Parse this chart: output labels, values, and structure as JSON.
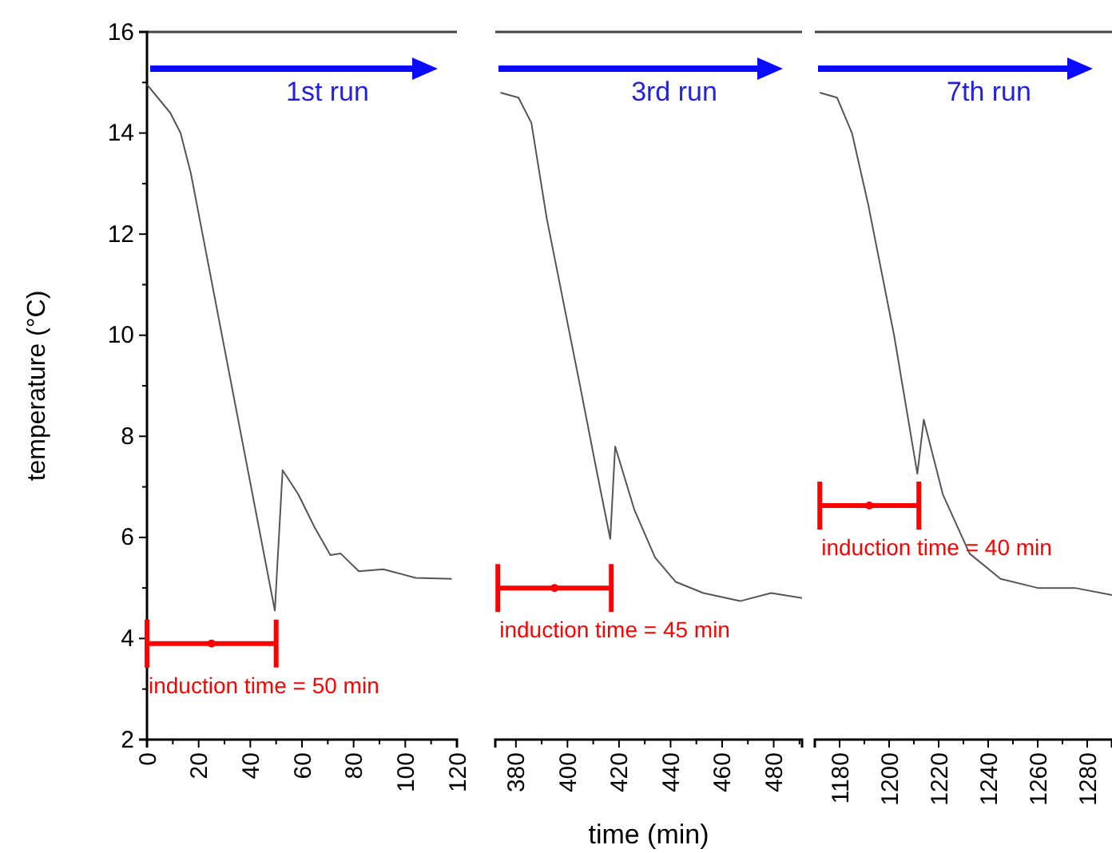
{
  "chart_data": [
    {
      "type": "line",
      "ylabel": "temperature (°C)",
      "xlim": [
        0,
        120
      ],
      "ylim": [
        2,
        16
      ],
      "xticks": [
        0,
        {
          "value": 10,
          "label": null
        },
        20,
        {
          "value": 30,
          "label": null
        },
        40,
        {
          "value": 50,
          "label": null
        },
        60,
        {
          "value": 70,
          "label": null
        },
        80,
        {
          "value": 90,
          "label": null
        },
        100,
        {
          "value": 110,
          "label": null
        },
        120
      ],
      "yticks": [
        2,
        {
          "value": 3,
          "label": null
        },
        4,
        {
          "value": 5,
          "label": null
        },
        6,
        {
          "value": 7,
          "label": null
        },
        8,
        {
          "value": 9,
          "label": null
        },
        10,
        {
          "value": 11,
          "label": null
        },
        12,
        {
          "value": 13,
          "label": null
        },
        14,
        {
          "value": 15,
          "label": null
        },
        16
      ],
      "series": [
        {
          "color": "#555555",
          "x": [
            0,
            9,
            13,
            17,
            49.5,
            52.5,
            58.6,
            64.9,
            71,
            75,
            82,
            91.5,
            104,
            118
          ],
          "values": [
            14.96,
            14.4,
            14.0,
            13.2,
            4.55,
            7.33,
            6.85,
            6.2,
            5.65,
            5.68,
            5.33,
            5.37,
            5.2,
            5.18
          ]
        },
        {
          "type": "scatter",
          "marker": "circle",
          "color": "#ff0000",
          "x": [
            25
          ],
          "values": [
            3.9
          ],
          "xerrors": [
            [
              0,
              50
            ]
          ]
        }
      ],
      "annotations": [
        "1st run",
        "induction time = 50 min"
      ]
    },
    {
      "type": "line",
      "xlabel": "time (min)",
      "xlim": [
        372,
        491
      ],
      "ylim": [
        2,
        16
      ],
      "tick_labels": "x",
      "xticks": [
        380,
        {
          "value": 390,
          "label": null
        },
        400,
        {
          "value": 410,
          "label": null
        },
        420,
        {
          "value": 430,
          "label": null
        },
        440,
        {
          "value": 450,
          "label": null
        },
        460,
        {
          "value": 470,
          "label": null
        },
        480,
        {
          "value": 490,
          "label": null
        }
      ],
      "series": [
        {
          "color": "#555555",
          "x": [
            374,
            381,
            386,
            392,
            405,
            411,
            416.6,
            418.5,
            426,
            434,
            442,
            452.7,
            467,
            479,
            491
          ],
          "values": [
            14.8,
            14.7,
            14.2,
            12.3,
            8.97,
            7.4,
            5.97,
            7.8,
            6.54,
            5.6,
            5.12,
            4.9,
            4.74,
            4.9,
            4.8
          ]
        },
        {
          "type": "scatter",
          "marker": "circle",
          "color": "#ff0000",
          "x": [
            395
          ],
          "values": [
            5.0
          ],
          "xerrors": [
            [
              373,
              417
            ]
          ]
        }
      ],
      "annotations": [
        "3rd run",
        "induction time = 45 min"
      ]
    },
    {
      "type": "line",
      "xlim": [
        1170,
        1290
      ],
      "ylim": [
        2,
        16
      ],
      "tick_labels": "x",
      "xticks": [
        1180,
        {
          "value": 1190,
          "label": null
        },
        1200,
        {
          "value": 1210,
          "label": null
        },
        1220,
        {
          "value": 1230,
          "label": null
        },
        1240,
        {
          "value": 1250,
          "label": null
        },
        1260,
        {
          "value": 1270,
          "label": null
        },
        1280
      ],
      "series": [
        {
          "color": "#555555",
          "x": [
            1172,
            1179,
            1185,
            1191.5,
            1202,
            1211.4,
            1214,
            1221.7,
            1232.5,
            1245,
            1260,
            1275,
            1290
          ],
          "values": [
            14.8,
            14.7,
            14.0,
            12.6,
            10.0,
            7.26,
            8.33,
            6.85,
            5.68,
            5.18,
            5.0,
            5.0,
            4.86
          ]
        },
        {
          "type": "scatter",
          "marker": "circle",
          "color": "#ff0000",
          "x": [
            1192
          ],
          "values": [
            6.63
          ],
          "xerrors": [
            [
              1172,
              1212
            ]
          ]
        }
      ],
      "annotations": [
        "7th run",
        "induction time = 40 min"
      ]
    }
  ]
}
